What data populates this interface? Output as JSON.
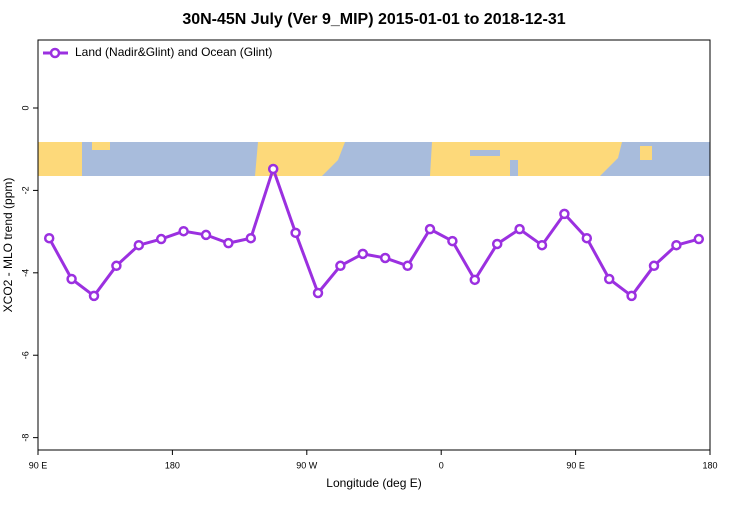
{
  "chart_data": {
    "type": "line",
    "title": "30N-45N July (Ver 9_MIP)   2015-01-01 to 2018-12-31",
    "x_label": "Longitude (deg E)",
    "y_label": "XCO2 - MLO trend (ppm)",
    "x": [
      97.5,
      112.5,
      127.5,
      142.5,
      157.5,
      172.5,
      187.5,
      202.5,
      217.5,
      232.5,
      247.5,
      262.5,
      277.5,
      292.5,
      307.5,
      322.5,
      337.5,
      352.5,
      367.5,
      382.5,
      397.5,
      412.5,
      427.5,
      442.5,
      457.5,
      472.5,
      487.5,
      502.5,
      517.5,
      532.5
    ],
    "series": [
      {
        "name": "Land (Nadir&Glint) and Ocean (Glint)",
        "color": "#9b30e0",
        "values": [
          -3.16,
          -4.15,
          -4.56,
          -3.83,
          -3.33,
          -3.18,
          -2.99,
          -3.08,
          -3.28,
          -3.16,
          -1.48,
          -3.03,
          -4.49,
          -3.83,
          -3.54,
          -3.64,
          -3.83,
          -2.94,
          -3.23,
          -4.17,
          -3.3,
          -2.94,
          -3.33,
          -2.57,
          -3.16,
          -4.15,
          -4.56,
          -3.83,
          -3.33,
          -3.18
        ]
      }
    ],
    "xlim": [
      90,
      540
    ],
    "xticks": [
      {
        "value": 90,
        "label": "90 E"
      },
      180,
      {
        "value": 270,
        "label": "90 W"
      },
      {
        "value": 360,
        "label": "0"
      },
      {
        "value": 450,
        "label": "90 E"
      },
      {
        "value": 540,
        "label": "180"
      }
    ],
    "ylim": [
      -8.3,
      1.65
    ],
    "yticks": [
      0,
      -2,
      -4,
      -6,
      -8
    ],
    "legend": "top-left"
  }
}
